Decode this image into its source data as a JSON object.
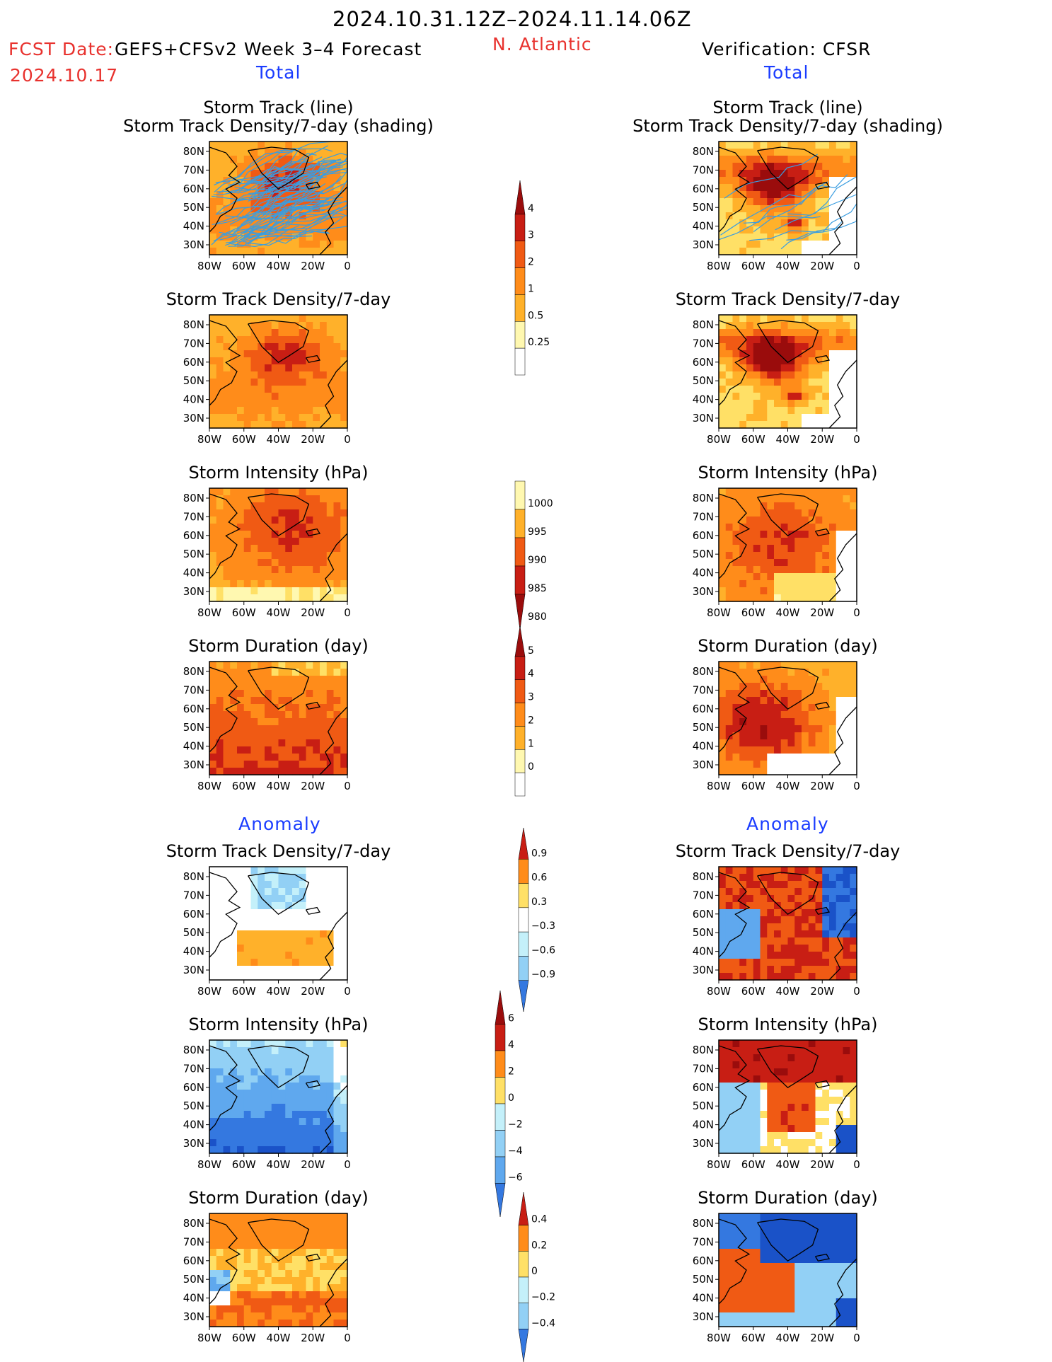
{
  "header": {
    "period": "2024.10.31.12Z–2024.11.14.06Z",
    "fcst_date_label": "FCST Date:",
    "fcst_date": "2024.10.17",
    "model": "GEFS+CFSv2 Week 3–4 Forecast",
    "region": "N. Atlantic",
    "verification": "Verification: CFSR",
    "total_left": "Total",
    "total_right": "Total",
    "anomaly_left": "Anomaly",
    "anomaly_right": "Anomaly"
  },
  "colors": {
    "red_text": "#e8322e",
    "blue_text": "#1a3cff",
    "track_line": "#3a9de0",
    "positive_scale": [
      "#fff8b0",
      "#ffe066",
      "#ffb12a",
      "#ff8c1a",
      "#f05a14",
      "#c81e14",
      "#9a0c0c"
    ],
    "negative_scale": [
      "#ffffff",
      "#c4f0fa",
      "#92d0f5",
      "#5fa8ee",
      "#3478e0",
      "#1a52c8"
    ]
  },
  "chart_data": [
    {
      "type": "heatmap",
      "id": "fc_total_track",
      "title": "Storm Track (line)\nStorm Track Density/7-day (shading)",
      "x_ticks": [
        "80W",
        "60W",
        "40W",
        "20W",
        "0"
      ],
      "y_ticks": [
        "80N",
        "70N",
        "60N",
        "50N",
        "40N",
        "30N"
      ],
      "lines": "storm tracks",
      "levels": [
        0.25,
        0.5,
        1,
        2,
        3,
        4
      ]
    },
    {
      "type": "heatmap",
      "id": "fc_total_density",
      "title": "Storm Track Density/7-day",
      "x_ticks": [
        "80W",
        "60W",
        "40W",
        "20W",
        "0"
      ],
      "y_ticks": [
        "80N",
        "70N",
        "60N",
        "50N",
        "40N",
        "30N"
      ],
      "levels": [
        0.25,
        0.5,
        1,
        2,
        3,
        4
      ]
    },
    {
      "type": "heatmap",
      "id": "fc_total_intensity",
      "title": "Storm Intensity (hPa)",
      "x_ticks": [
        "80W",
        "60W",
        "40W",
        "20W",
        "0"
      ],
      "y_ticks": [
        "80N",
        "70N",
        "60N",
        "50N",
        "40N",
        "30N"
      ],
      "levels": [
        1000,
        995,
        990,
        985,
        980
      ]
    },
    {
      "type": "heatmap",
      "id": "fc_total_duration",
      "title": "Storm Duration (day)",
      "x_ticks": [
        "80W",
        "60W",
        "40W",
        "20W",
        "0"
      ],
      "y_ticks": [
        "80N",
        "70N",
        "60N",
        "50N",
        "40N",
        "30N"
      ],
      "levels": [
        0,
        1,
        2,
        3,
        4,
        5
      ]
    },
    {
      "type": "heatmap",
      "id": "fc_anom_density",
      "title": "Storm Track Density/7-day",
      "x_ticks": [
        "80W",
        "60W",
        "40W",
        "20W",
        "0"
      ],
      "y_ticks": [
        "80N",
        "70N",
        "60N",
        "50N",
        "40N",
        "30N"
      ],
      "levels": [
        -0.9,
        -0.6,
        -0.3,
        0.3,
        0.6,
        0.9
      ]
    },
    {
      "type": "heatmap",
      "id": "fc_anom_intensity",
      "title": "Storm Intensity (hPa)",
      "x_ticks": [
        "80W",
        "60W",
        "40W",
        "20W",
        "0"
      ],
      "y_ticks": [
        "80N",
        "70N",
        "60N",
        "50N",
        "40N",
        "30N"
      ],
      "levels": [
        -6,
        -4,
        -2,
        0,
        2,
        4,
        6
      ]
    },
    {
      "type": "heatmap",
      "id": "fc_anom_duration",
      "title": "Storm Duration (day)",
      "x_ticks": [
        "80W",
        "60W",
        "40W",
        "20W",
        "0"
      ],
      "y_ticks": [
        "80N",
        "70N",
        "60N",
        "50N",
        "40N",
        "30N"
      ],
      "levels": [
        -0.4,
        -0.2,
        0,
        0.2,
        0.4
      ]
    },
    {
      "type": "heatmap",
      "id": "ver_total_track",
      "title": "Storm Track (line)\nStorm Track Density/7-day (shading)",
      "x_ticks": [
        "80W",
        "60W",
        "40W",
        "20W",
        "0"
      ],
      "y_ticks": [
        "80N",
        "70N",
        "60N",
        "50N",
        "40N",
        "30N"
      ]
    },
    {
      "type": "heatmap",
      "id": "ver_total_density",
      "title": "Storm Track Density/7-day",
      "x_ticks": [
        "80W",
        "60W",
        "40W",
        "20W",
        "0"
      ],
      "y_ticks": [
        "80N",
        "70N",
        "60N",
        "50N",
        "40N",
        "30N"
      ]
    },
    {
      "type": "heatmap",
      "id": "ver_total_intensity",
      "title": "Storm Intensity (hPa)",
      "x_ticks": [
        "80W",
        "60W",
        "40W",
        "20W",
        "0"
      ],
      "y_ticks": [
        "80N",
        "70N",
        "60N",
        "50N",
        "40N",
        "30N"
      ]
    },
    {
      "type": "heatmap",
      "id": "ver_total_duration",
      "title": "Storm Duration (day)",
      "x_ticks": [
        "80W",
        "60W",
        "40W",
        "20W",
        "0"
      ],
      "y_ticks": [
        "80N",
        "70N",
        "60N",
        "50N",
        "40N",
        "30N"
      ]
    },
    {
      "type": "heatmap",
      "id": "ver_anom_density",
      "title": "Storm Track Density/7-day",
      "x_ticks": [
        "80W",
        "60W",
        "40W",
        "20W",
        "0"
      ],
      "y_ticks": [
        "80N",
        "70N",
        "60N",
        "50N",
        "40N",
        "30N"
      ]
    },
    {
      "type": "heatmap",
      "id": "ver_anom_intensity",
      "title": "Storm Intensity (hPa)",
      "x_ticks": [
        "80W",
        "60W",
        "40W",
        "20W",
        "0"
      ],
      "y_ticks": [
        "80N",
        "70N",
        "60N",
        "50N",
        "40N",
        "30N"
      ]
    },
    {
      "type": "heatmap",
      "id": "ver_anom_duration",
      "title": "Storm Duration (day)",
      "x_ticks": [
        "80W",
        "60W",
        "40W",
        "20W",
        "0"
      ],
      "y_ticks": [
        "80N",
        "70N",
        "60N",
        "50N",
        "40N",
        "30N"
      ]
    }
  ],
  "colorbars": [
    {
      "id": "cb_density",
      "labels": [
        "4",
        "3",
        "2",
        "1",
        "0.5",
        "0.25"
      ]
    },
    {
      "id": "cb_intensity",
      "labels": [
        "1000",
        "995",
        "990",
        "985",
        "980"
      ]
    },
    {
      "id": "cb_duration",
      "labels": [
        "5",
        "4",
        "3",
        "2",
        "1",
        "0"
      ]
    },
    {
      "id": "cb_anom_density",
      "labels": [
        "0.9",
        "0.6",
        "0.3",
        "−0.3",
        "−0.6",
        "−0.9"
      ]
    },
    {
      "id": "cb_anom_intensity",
      "labels": [
        "6",
        "4",
        "2",
        "0",
        "−2",
        "−4",
        "−6"
      ]
    },
    {
      "id": "cb_anom_duration",
      "labels": [
        "0.4",
        "0.2",
        "0",
        "−0.2",
        "−0.4"
      ]
    }
  ]
}
